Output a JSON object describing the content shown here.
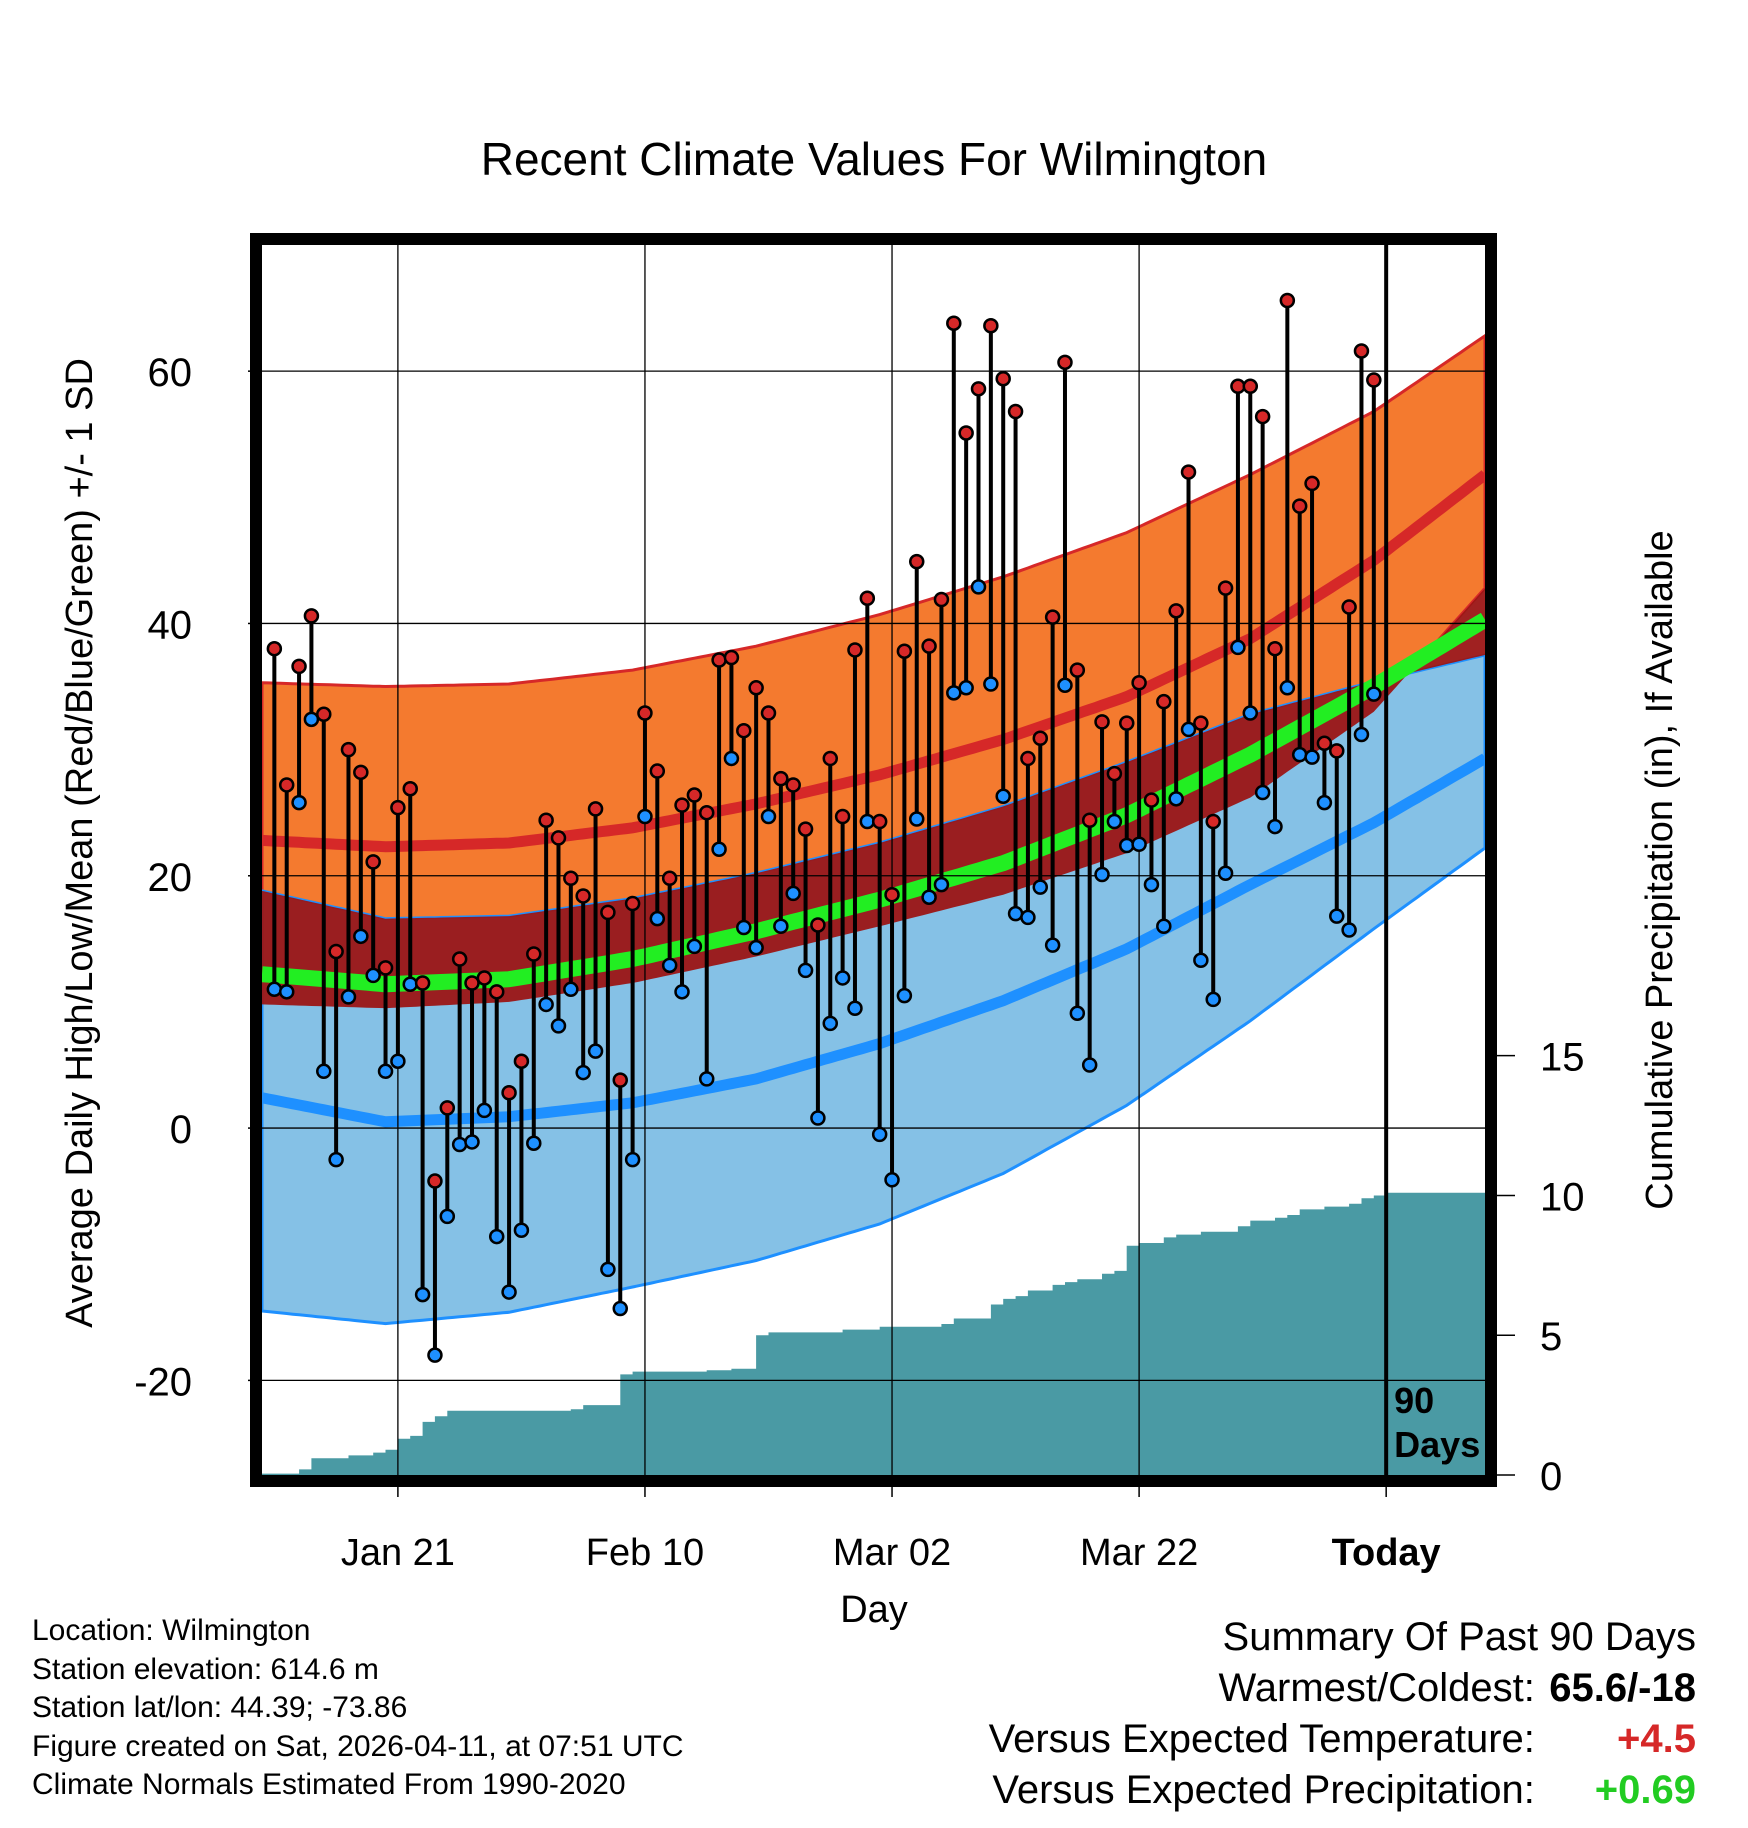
{
  "chart_data": {
    "type": "line",
    "title": "Recent Climate Values For Wilmington",
    "xlabel": "Day",
    "ylabel": "Average Daily High/Low/Mean (Red/Blue/Green) +/- 1 SD",
    "y2label": "Cumulative Precipitation (in), If Available",
    "xlim": [
      0,
      99
    ],
    "ylim": [
      -27.5,
      70
    ],
    "y2lim": [
      0,
      44
    ],
    "y_ticks": [
      -20,
      0,
      20,
      40,
      60
    ],
    "y_tick_labels": [
      "-20",
      "0",
      "20",
      "40",
      "60"
    ],
    "y2_ticks": [
      0,
      5,
      10,
      15
    ],
    "y2_tick_labels": [
      "0",
      "5",
      "10",
      "15"
    ],
    "x_ticks": [
      11,
      31,
      51,
      71,
      91
    ],
    "x_tick_labels": [
      "Jan 21",
      "Feb 10",
      "Mar 02",
      "Mar 22",
      "Today"
    ],
    "today_x": 91,
    "today_label_line1": "90",
    "today_label_line2": "Days",
    "normals": {
      "x": [
        0,
        10,
        20,
        30,
        40,
        50,
        60,
        70,
        80,
        90,
        99
      ],
      "high_mean": [
        22.8,
        22.3,
        22.6,
        23.8,
        25.7,
        28.0,
        30.8,
        34.2,
        38.8,
        45.0,
        51.8
      ],
      "high_sd_upper": [
        35.3,
        35.0,
        35.2,
        36.3,
        38.2,
        40.7,
        43.7,
        47.2,
        51.8,
        56.8,
        62.8
      ],
      "high_sd_lower": [
        9.8,
        9.5,
        10.0,
        11.5,
        13.6,
        16.0,
        18.5,
        21.8,
        26.2,
        33.0,
        42.8
      ],
      "low_mean": [
        2.4,
        0.5,
        0.9,
        2.0,
        3.9,
        6.7,
        10.1,
        14.2,
        19.3,
        24.2,
        29.3
      ],
      "low_sd_upper": [
        18.8,
        16.6,
        16.8,
        18.2,
        20.2,
        22.6,
        25.5,
        29.0,
        32.8,
        35.4,
        37.5
      ],
      "low_sd_lower": [
        -14.5,
        -15.5,
        -14.6,
        -12.6,
        -10.5,
        -7.6,
        -3.6,
        1.8,
        8.5,
        15.8,
        22.2
      ],
      "avg_mean": [
        12.2,
        11.4,
        11.8,
        13.4,
        15.6,
        18.1,
        21.0,
        24.8,
        29.6,
        35.0,
        40.3
      ]
    },
    "series": [
      {
        "name": "Daily High",
        "color": "#d62828",
        "values": [
          38.0,
          27.2,
          36.6,
          40.6,
          32.8,
          14.0,
          30.0,
          28.2,
          21.1,
          12.7,
          25.4,
          26.9,
          11.5,
          -4.2,
          1.6,
          13.4,
          11.5,
          11.9,
          10.8,
          2.8,
          5.3,
          13.8,
          24.4,
          23.0,
          19.8,
          18.4,
          25.3,
          17.1,
          3.8,
          17.8,
          32.9,
          28.3,
          19.8,
          25.6,
          26.4,
          25.0,
          37.1,
          37.3,
          31.5,
          34.9,
          32.9,
          27.7,
          27.2,
          23.7,
          16.1,
          29.3,
          24.7,
          37.9,
          42.0,
          24.3,
          18.5,
          37.8,
          44.9,
          38.2,
          41.9,
          63.8,
          55.1,
          58.6,
          63.6,
          59.4,
          56.8,
          29.3,
          30.9,
          40.5,
          60.7,
          36.3,
          24.4,
          32.2,
          28.1,
          32.1,
          35.3,
          26.0,
          33.8,
          41.0,
          52.0,
          32.1,
          24.3,
          42.8,
          58.8,
          58.8,
          56.4,
          38.0,
          65.6,
          49.3,
          51.1,
          30.5,
          29.9,
          41.3,
          61.6,
          59.3
        ]
      },
      {
        "name": "Daily Low",
        "color": "#1e90ff",
        "values": [
          11.0,
          10.8,
          25.8,
          32.4,
          4.5,
          -2.5,
          10.4,
          15.2,
          12.1,
          4.5,
          5.3,
          11.4,
          -13.2,
          -18.0,
          -7.0,
          -1.3,
          -1.1,
          1.4,
          -8.6,
          -13.0,
          -8.1,
          -1.2,
          9.8,
          8.1,
          11.0,
          4.4,
          6.1,
          -11.2,
          -14.3,
          -2.5,
          24.7,
          16.6,
          12.9,
          10.8,
          14.4,
          3.9,
          22.1,
          29.3,
          15.9,
          14.3,
          24.7,
          16.0,
          18.6,
          12.5,
          0.8,
          8.3,
          11.9,
          9.5,
          24.3,
          -0.5,
          -4.1,
          10.5,
          24.5,
          18.3,
          19.3,
          34.5,
          34.9,
          42.9,
          35.2,
          26.3,
          17.0,
          16.7,
          19.1,
          14.5,
          35.1,
          9.1,
          5.0,
          20.1,
          24.3,
          22.4,
          22.5,
          19.3,
          16.0,
          26.1,
          31.6,
          13.3,
          10.2,
          20.2,
          38.1,
          32.9,
          26.6,
          23.9,
          34.9,
          29.6,
          29.4,
          25.8,
          16.8,
          15.7,
          31.2,
          34.4
        ]
      },
      {
        "name": "Cumulative Precipitation",
        "color": "#4a9aa4",
        "x": [
          0,
          3,
          4,
          7,
          9,
          10,
          11,
          12,
          13,
          14,
          15,
          16,
          17,
          18,
          19,
          20,
          22,
          25,
          26,
          27,
          28,
          29,
          30,
          31,
          33,
          36,
          38,
          39,
          40,
          41,
          45,
          47,
          50,
          55,
          56,
          57,
          58,
          59,
          60,
          61,
          62,
          63,
          64,
          65,
          66,
          68,
          69,
          70,
          71,
          72,
          73,
          74,
          76,
          77,
          78,
          79,
          80,
          81,
          82,
          83,
          84,
          85,
          86,
          87,
          88,
          89,
          90,
          91,
          99
        ],
        "values": [
          0.05,
          0.2,
          0.6,
          0.7,
          0.8,
          0.9,
          1.3,
          1.4,
          1.9,
          2.1,
          2.3,
          2.3,
          2.3,
          2.3,
          2.3,
          2.3,
          2.3,
          2.35,
          2.5,
          2.5,
          2.5,
          3.6,
          3.7,
          3.7,
          3.7,
          3.75,
          3.8,
          3.8,
          5.0,
          5.1,
          5.1,
          5.2,
          5.3,
          5.4,
          5.6,
          5.6,
          5.6,
          6.1,
          6.3,
          6.4,
          6.6,
          6.6,
          6.8,
          6.9,
          7.0,
          7.2,
          7.3,
          8.2,
          8.3,
          8.3,
          8.5,
          8.6,
          8.7,
          8.7,
          8.7,
          8.9,
          9.1,
          9.1,
          9.2,
          9.3,
          9.5,
          9.5,
          9.6,
          9.6,
          9.7,
          9.9,
          10.0,
          10.1,
          10.1
        ]
      }
    ]
  },
  "info": {
    "location": "Location: Wilmington",
    "elevation": "Station elevation: 614.6 m",
    "latlon": "Station lat/lon: 44.39; -73.86",
    "created": "Figure created on Sat, 2026-04-11, at 07:51 UTC",
    "normals_source": "Climate Normals Estimated From 1990-2020"
  },
  "summary": {
    "title": "Summary Of Past 90 Days",
    "warmest_coldest_label": "Warmest/Coldest:",
    "warmest_coldest_value": "65.6/-18",
    "temp_label": "Versus Expected Temperature:",
    "temp_value": "+4.5",
    "temp_color": "#d62828",
    "precip_label": "Versus Expected Precipitation:",
    "precip_value": "+0.69",
    "precip_color": "#22cc22"
  }
}
